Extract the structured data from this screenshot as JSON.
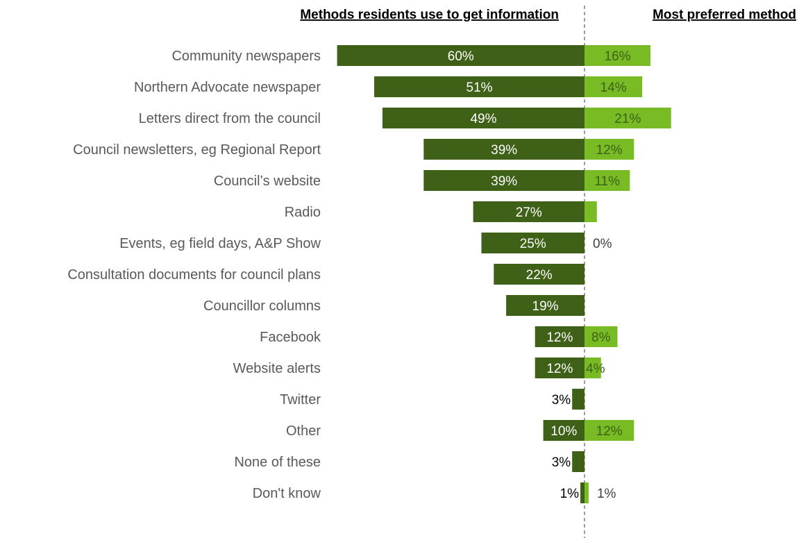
{
  "headers": {
    "left": "Methods residents use to get information",
    "right": "Most preferred method"
  },
  "colors": {
    "use_bar": "#3e6117",
    "preferred_bar": "#78bb24",
    "category_text": "#595959",
    "divider": "#7f7f7f"
  },
  "chart_data": {
    "type": "bar",
    "orientation": "horizontal-diverging",
    "categories": [
      "Community newspapers",
      "Northern Advocate newspaper",
      "Letters direct from the council",
      "Council newsletters, eg Regional Report",
      "Council’s website",
      "Radio",
      "Events, eg field days, A&P Show",
      "Consultation documents for council plans",
      "Councillor columns",
      "Facebook",
      "Website alerts",
      "Twitter",
      "Other",
      "None of these",
      "Don't know"
    ],
    "series": [
      {
        "name": "Methods residents use to get information",
        "values": [
          60,
          51,
          49,
          39,
          39,
          27,
          25,
          22,
          19,
          12,
          12,
          3,
          10,
          3,
          1
        ],
        "labels": [
          "60%",
          "51%",
          "49%",
          "39%",
          "39%",
          "27%",
          "25%",
          "22%",
          "19%",
          "12%",
          "12%",
          "3%",
          "10%",
          "3%",
          "1%"
        ]
      },
      {
        "name": "Most preferred method",
        "values": [
          16,
          14,
          21,
          12,
          11,
          3,
          0,
          0,
          0,
          8,
          4,
          0,
          12,
          0,
          1
        ],
        "labels": [
          "16%",
          "14%",
          "21%",
          "12%",
          "11%",
          "",
          "0%",
          "",
          "",
          "8%",
          "4%",
          "",
          "12%",
          "",
          "1%"
        ]
      }
    ],
    "xlim": [
      0,
      100
    ],
    "grid": false,
    "legend": "none"
  }
}
